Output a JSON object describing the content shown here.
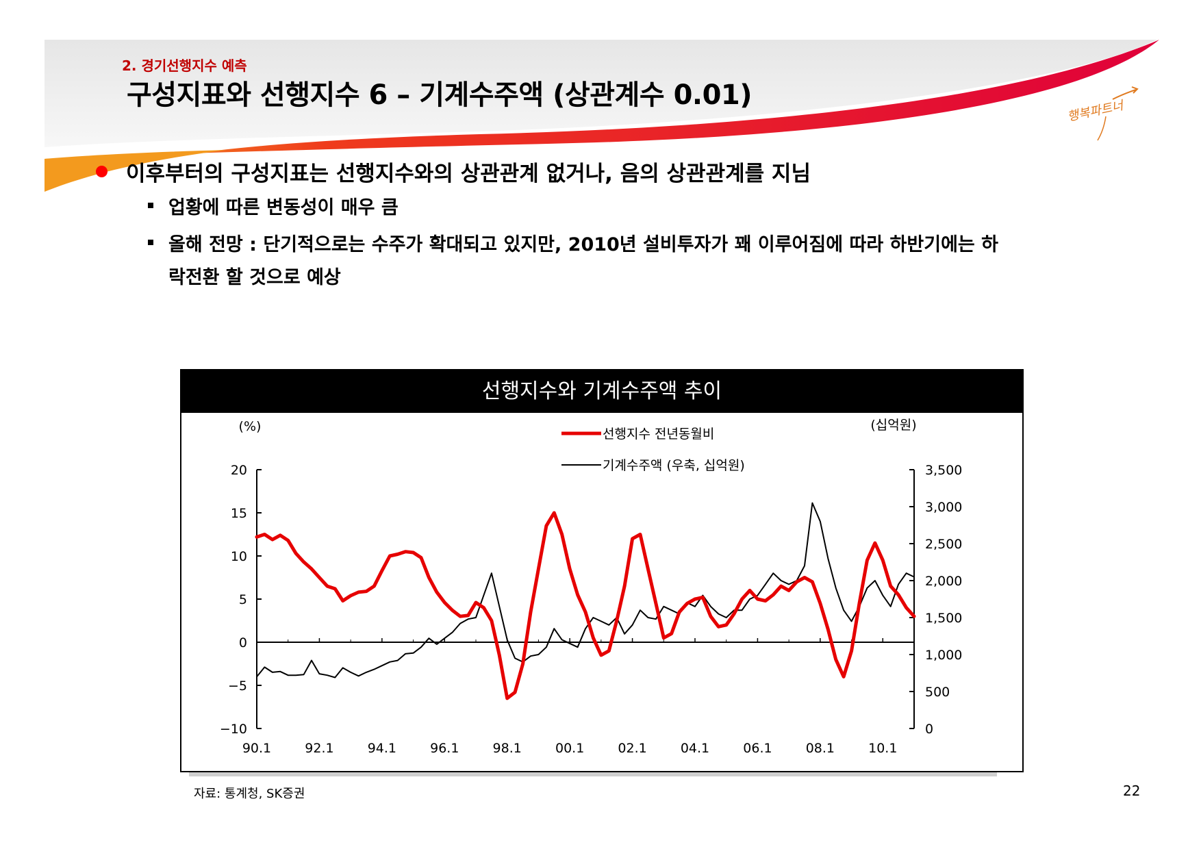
{
  "header": {
    "section": "2. 경기선행지수 예측",
    "title": "구성지표와 선행지수 6 – 기계수주액 (상관계수 0.01)",
    "logo_text": "행복파트너"
  },
  "bullets": {
    "main": "이후부터의 구성지표는 선행지수와의 상관관계 없거나, 음의 상관관계를 지님",
    "sub1": "업황에 따른 변동성이 매우 큼",
    "sub2_line1": "올해 전망 : 단기적으로는 수주가 확대되고 있지만, 2010년 설비투자가 꽤 이루어짐에 따라 하반기에는 하",
    "sub2_line2": "락전환 할 것으로 예상"
  },
  "source": "자료: 통계청, SK증권",
  "page_number": "22",
  "colors": {
    "accent_red": "#e60000",
    "banner_orange": "#f39a1e",
    "black": "#000000"
  },
  "chart_data": {
    "type": "line",
    "title": "선행지수와 기계수주액 추이",
    "ylabel_left": "(%)",
    "ylabel_right": "(십억원)",
    "ylim_left": [
      -10,
      20
    ],
    "ylim_right": [
      0,
      3500
    ],
    "yticks_left": [
      "20",
      "15",
      "10",
      "5",
      "0",
      "−5",
      "−10"
    ],
    "yticks_right": [
      "3,500",
      "3,000",
      "2,500",
      "2,000",
      "1,500",
      "1,000",
      "500",
      "0"
    ],
    "x_ticks": [
      "90.1",
      "92.1",
      "94.1",
      "96.1",
      "98.1",
      "00.1",
      "02.1",
      "04.1",
      "06.1",
      "08.1",
      "10.1"
    ],
    "legend": "top-center",
    "series": [
      {
        "name": "선행지수 전년동월비",
        "axis": "left",
        "color": "#e60000",
        "x": [
          1990.0,
          1990.25,
          1990.5,
          1990.75,
          1991.0,
          1991.25,
          1991.5,
          1991.75,
          1992.0,
          1992.25,
          1992.5,
          1992.75,
          1993.0,
          1993.25,
          1993.5,
          1993.75,
          1994.0,
          1994.25,
          1994.5,
          1994.75,
          1995.0,
          1995.25,
          1995.5,
          1995.75,
          1996.0,
          1996.25,
          1996.5,
          1996.75,
          1997.0,
          1997.25,
          1997.5,
          1997.75,
          1998.0,
          1998.25,
          1998.5,
          1998.75,
          1999.0,
          1999.25,
          1999.5,
          1999.75,
          2000.0,
          2000.25,
          2000.5,
          2000.75,
          2001.0,
          2001.25,
          2001.5,
          2001.75,
          2002.0,
          2002.25,
          2002.5,
          2002.75,
          2003.0,
          2003.25,
          2003.5,
          2003.75,
          2004.0,
          2004.25,
          2004.5,
          2004.75,
          2005.0,
          2005.25,
          2005.5,
          2005.75,
          2006.0,
          2006.25,
          2006.5,
          2006.75,
          2007.0,
          2007.25,
          2007.5,
          2007.75,
          2008.0,
          2008.25,
          2008.5,
          2008.75,
          2009.0,
          2009.25,
          2009.5,
          2009.75,
          2010.0,
          2010.25,
          2010.5,
          2010.75,
          2011.0
        ],
        "values": [
          12.2,
          12.5,
          11.9,
          12.4,
          11.8,
          10.3,
          9.3,
          8.5,
          7.5,
          6.5,
          6.2,
          4.8,
          5.4,
          5.8,
          5.9,
          6.5,
          8.3,
          10.0,
          10.2,
          10.5,
          10.4,
          9.8,
          7.5,
          5.8,
          4.6,
          3.7,
          3.0,
          3.1,
          4.6,
          4.0,
          2.5,
          -1.5,
          -6.5,
          -5.8,
          -2.5,
          3.5,
          8.5,
          13.5,
          15.0,
          12.5,
          8.5,
          5.5,
          3.5,
          0.5,
          -1.5,
          -1.0,
          2.5,
          6.5,
          12.0,
          12.5,
          8.5,
          4.5,
          0.5,
          1.0,
          3.5,
          4.5,
          5.0,
          5.2,
          3.0,
          1.8,
          2.0,
          3.3,
          5.0,
          6.0,
          5.0,
          4.8,
          5.5,
          6.5,
          6.0,
          7.0,
          7.5,
          7.0,
          4.5,
          1.5,
          -2.0,
          -4.0,
          -1.0,
          4.5,
          9.5,
          11.5,
          9.5,
          6.5,
          5.5,
          4.0,
          3.0
        ]
      },
      {
        "name": "기계수주액 (우축, 십억원)",
        "axis": "right",
        "color": "#000000",
        "x": [
          1990.0,
          1990.25,
          1990.5,
          1990.75,
          1991.0,
          1991.25,
          1991.5,
          1991.75,
          1992.0,
          1992.25,
          1992.5,
          1992.75,
          1993.0,
          1993.25,
          1993.5,
          1993.75,
          1994.0,
          1994.25,
          1994.5,
          1994.75,
          1995.0,
          1995.25,
          1995.5,
          1995.75,
          1996.0,
          1996.25,
          1996.5,
          1996.75,
          1997.0,
          1997.25,
          1997.5,
          1997.75,
          1998.0,
          1998.25,
          1998.5,
          1998.75,
          1999.0,
          1999.25,
          1999.5,
          1999.75,
          2000.0,
          2000.25,
          2000.5,
          2000.75,
          2001.0,
          2001.25,
          2001.5,
          2001.75,
          2002.0,
          2002.25,
          2002.5,
          2002.75,
          2003.0,
          2003.25,
          2003.5,
          2003.75,
          2004.0,
          2004.25,
          2004.5,
          2004.75,
          2005.0,
          2005.25,
          2005.5,
          2005.75,
          2006.0,
          2006.25,
          2006.5,
          2006.75,
          2007.0,
          2007.25,
          2007.5,
          2007.75,
          2008.0,
          2008.25,
          2008.5,
          2008.75,
          2009.0,
          2009.25,
          2009.5,
          2009.75,
          2010.0,
          2010.25,
          2010.5,
          2010.75,
          2011.0
        ],
        "values": [
          700,
          830,
          760,
          770,
          720,
          720,
          730,
          920,
          740,
          720,
          690,
          820,
          760,
          710,
          760,
          800,
          850,
          900,
          920,
          1010,
          1020,
          1100,
          1220,
          1140,
          1220,
          1300,
          1420,
          1480,
          1500,
          1800,
          2100,
          1650,
          1200,
          950,
          900,
          980,
          1000,
          1100,
          1350,
          1200,
          1150,
          1100,
          1350,
          1500,
          1450,
          1400,
          1500,
          1280,
          1400,
          1600,
          1500,
          1480,
          1650,
          1600,
          1550,
          1700,
          1650,
          1800,
          1650,
          1550,
          1500,
          1600,
          1600,
          1750,
          1800,
          1950,
          2100,
          2000,
          1950,
          2000,
          2200,
          3050,
          2800,
          2300,
          1900,
          1600,
          1450,
          1650,
          1900,
          2000,
          1800,
          1650,
          1950,
          2100,
          2050
        ]
      }
    ]
  }
}
